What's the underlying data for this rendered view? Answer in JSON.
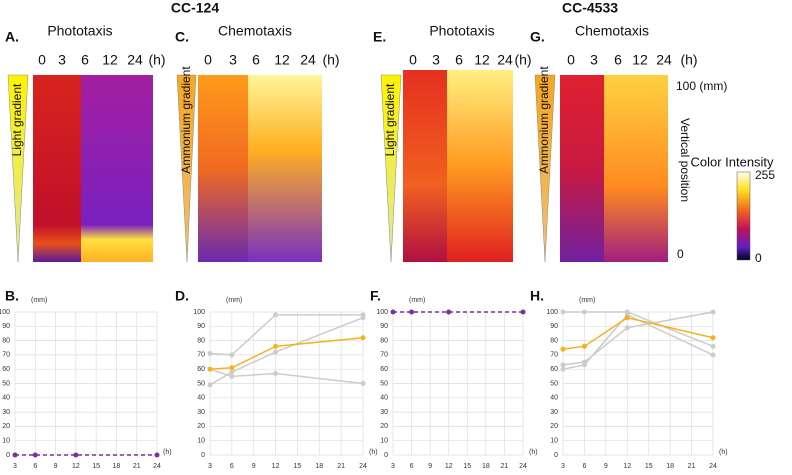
{
  "strains": [
    "CC-124",
    "CC-4533"
  ],
  "panels": [
    {
      "letter": "A.",
      "title": "Phototaxis",
      "gradient": "Light gradient"
    },
    {
      "letter": "C.",
      "title": "Chemotaxis",
      "gradient": "Ammonium gradient"
    },
    {
      "letter": "E.",
      "title": "Phototaxis",
      "gradient": "Light gradient"
    },
    {
      "letter": "G.",
      "title": "Chemotaxis",
      "gradient": "Ammonium gradient"
    }
  ],
  "times": [
    "0",
    "3",
    "6",
    "12",
    "24",
    "(h)"
  ],
  "position_scale": {
    "top": "100 (mm)",
    "label": "Vertical position",
    "bottom": "0"
  },
  "colorbar": {
    "title": "Color Intensity",
    "max": "255",
    "min": "0"
  },
  "chart_data": [
    {
      "type": "line",
      "title": "B.",
      "y_label": "(mm)",
      "x_label": "(h)",
      "x": [
        3,
        6,
        12,
        24
      ],
      "xlim": [
        3,
        24
      ],
      "xticks": [
        3,
        6,
        9,
        12,
        15,
        18,
        21,
        24
      ],
      "ylim": [
        0,
        100
      ],
      "yticks": [
        0,
        10,
        20,
        30,
        40,
        50,
        60,
        70,
        80,
        90,
        100
      ],
      "grid": true,
      "series": [
        {
          "color": "#7b2fa0",
          "dashed": true,
          "values": [
            0,
            0,
            0,
            0
          ]
        }
      ]
    },
    {
      "type": "line",
      "title": "D.",
      "y_label": "(mm)",
      "x_label": "(h)",
      "x": [
        3,
        6,
        12,
        24
      ],
      "xlim": [
        3,
        24
      ],
      "xticks": [
        3,
        6,
        9,
        12,
        15,
        18,
        21,
        24
      ],
      "ylim": [
        0,
        100
      ],
      "yticks": [
        0,
        10,
        20,
        30,
        40,
        50,
        60,
        70,
        80,
        90,
        100
      ],
      "grid": true,
      "series": [
        {
          "color": "#cccccc",
          "values": [
            71,
            70,
            98,
            98
          ]
        },
        {
          "color": "#cccccc",
          "values": [
            49,
            58,
            72,
            96
          ]
        },
        {
          "color": "#cccccc",
          "values": [
            60,
            55,
            57,
            50
          ]
        },
        {
          "color": "#f5b21b",
          "values": [
            60,
            61,
            76,
            82
          ]
        }
      ]
    },
    {
      "type": "line",
      "title": "F.",
      "y_label": "(mm)",
      "x_label": "(h)",
      "x": [
        3,
        6,
        12,
        24
      ],
      "xlim": [
        3,
        24
      ],
      "xticks": [
        3,
        6,
        9,
        12,
        15,
        18,
        21,
        24
      ],
      "ylim": [
        0,
        100
      ],
      "yticks": [
        0,
        10,
        20,
        30,
        40,
        50,
        60,
        70,
        80,
        90,
        100
      ],
      "grid": true,
      "series": [
        {
          "color": "#7b2fa0",
          "dashed": true,
          "values": [
            100,
            100,
            100,
            100
          ]
        }
      ]
    },
    {
      "type": "line",
      "title": "H.",
      "y_label": "(mm)",
      "x_label": "(h)",
      "x": [
        3,
        6,
        12,
        24
      ],
      "xlim": [
        3,
        24
      ],
      "xticks": [
        3,
        6,
        9,
        12,
        15,
        18,
        21,
        24
      ],
      "ylim": [
        0,
        100
      ],
      "yticks": [
        0,
        10,
        20,
        30,
        40,
        50,
        60,
        70,
        80,
        90,
        100
      ],
      "grid": true,
      "series": [
        {
          "color": "#cccccc",
          "values": [
            100,
            100,
            100,
            76
          ]
        },
        {
          "color": "#cccccc",
          "values": [
            63,
            65,
            89,
            100
          ]
        },
        {
          "color": "#cccccc",
          "values": [
            60,
            63,
            98,
            70
          ]
        },
        {
          "color": "#f5b21b",
          "values": [
            74,
            76,
            96,
            82
          ]
        }
      ]
    }
  ]
}
